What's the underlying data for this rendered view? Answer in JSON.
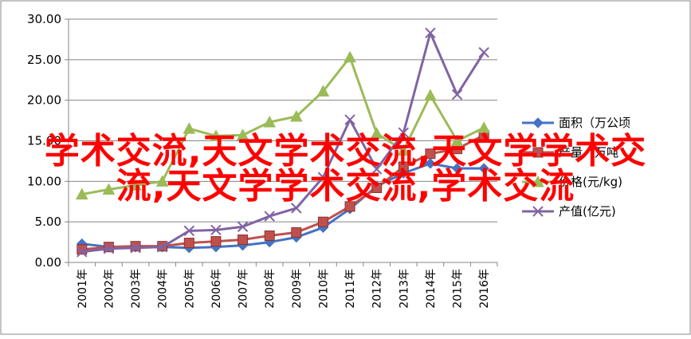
{
  "chart_data": {
    "type": "line",
    "title": "",
    "xlabel": "",
    "ylabel": "",
    "categories": [
      "2001年",
      "2002年",
      "2003年",
      "2004年",
      "2005年",
      "2006年",
      "2007年",
      "2008年",
      "2009年",
      "2010年",
      "2011年",
      "2012年",
      "2013年",
      "2014年",
      "2015年",
      "2016年"
    ],
    "ylim": [
      0,
      30
    ],
    "yticks": [
      "0.00",
      "5.00",
      "10.00",
      "15.00",
      "20.00",
      "25.00",
      "30.00"
    ],
    "grid": true,
    "legend_position": "right",
    "series": [
      {
        "name": "面积（万公顷",
        "color": "#4472c4",
        "marker": "diamond",
        "values": [
          2.3,
          1.9,
          1.9,
          1.9,
          1.8,
          1.9,
          2.1,
          2.5,
          3.1,
          4.3,
          6.6,
          9.4,
          11.0,
          12.2,
          11.6,
          11.6
        ]
      },
      {
        "name": "产量（万吨",
        "color": "#c0504d",
        "marker": "square",
        "values": [
          1.6,
          1.9,
          2.0,
          2.0,
          2.4,
          2.6,
          2.8,
          3.3,
          3.7,
          5.0,
          6.9,
          9.2,
          11.8,
          13.4,
          14.0,
          15.7
        ]
      },
      {
        "name": "价格(元/kg)",
        "color": "#9bbb59",
        "marker": "triangle",
        "values": [
          8.4,
          9.0,
          9.5,
          10.0,
          16.5,
          15.6,
          15.7,
          17.3,
          18.0,
          21.1,
          25.3,
          15.9,
          13.8,
          20.6,
          15.0,
          16.6
        ]
      },
      {
        "name": "产值(亿元)",
        "color": "#8064a2",
        "marker": "x",
        "values": [
          1.3,
          1.7,
          1.8,
          1.9,
          3.9,
          4.0,
          4.4,
          5.7,
          6.7,
          10.5,
          17.6,
          11.5,
          16.0,
          28.3,
          20.7,
          25.9
        ]
      }
    ]
  },
  "watermark": {
    "line1": "学术交流,天文学术交流,天文学学术交",
    "line2": "流,天文学学术交流,学术交流"
  }
}
